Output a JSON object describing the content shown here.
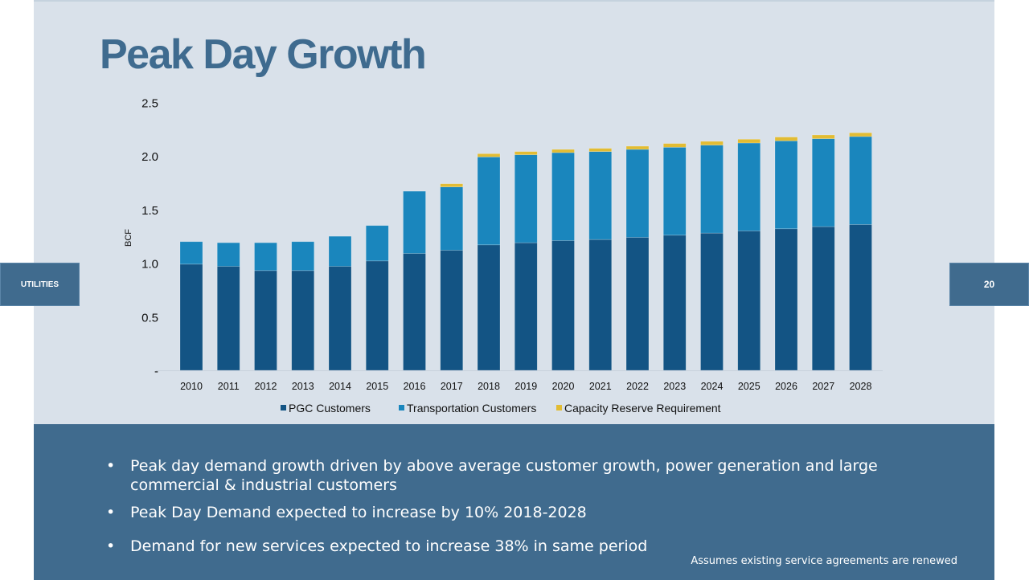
{
  "slide": {
    "title": "Peak Day Growth",
    "section_label": "UTILITIES",
    "page_number": "20",
    "bullets": [
      "Peak day demand growth driven by above average customer growth, power generation and large commercial & industrial customers",
      "Peak Day Demand expected to increase by 10% 2018-2028",
      "Demand for new services expected to increase 38% in same period"
    ],
    "footnote": "Assumes existing service agreements are renewed"
  },
  "colors": {
    "title": "#3f6b8f",
    "panel": "#406b8e",
    "background": "#d9e1ea",
    "pgc": "#135484",
    "transportation": "#1a86bd",
    "capacity": "#e2bc33"
  },
  "chart_data": {
    "type": "bar",
    "stacked": true,
    "title": "",
    "xlabel": "",
    "ylabel": "BCF",
    "ylim": [
      0,
      2.5
    ],
    "yticks": [
      0,
      0.5,
      1.0,
      1.5,
      2.0,
      2.5
    ],
    "ytick_labels": [
      "-",
      "0.5",
      "1.0",
      "1.5",
      "2.0",
      "2.5"
    ],
    "grid": false,
    "legend_position": "bottom",
    "categories": [
      "2010",
      "2011",
      "2012",
      "2013",
      "2014",
      "2015",
      "2016",
      "2017",
      "2018",
      "2019",
      "2020",
      "2021",
      "2022",
      "2023",
      "2024",
      "2025",
      "2026",
      "2027",
      "2028"
    ],
    "series": [
      {
        "name": "PGC Customers",
        "color": "#135484",
        "values": [
          0.99,
          0.97,
          0.93,
          0.93,
          0.97,
          1.02,
          1.09,
          1.12,
          1.17,
          1.19,
          1.21,
          1.22,
          1.24,
          1.26,
          1.28,
          1.3,
          1.32,
          1.34,
          1.36
        ]
      },
      {
        "name": "Transportation Customers",
        "color": "#1a86bd",
        "values": [
          0.21,
          0.22,
          0.26,
          0.27,
          0.28,
          0.33,
          0.58,
          0.59,
          0.82,
          0.82,
          0.82,
          0.82,
          0.82,
          0.82,
          0.82,
          0.82,
          0.82,
          0.82,
          0.82
        ]
      },
      {
        "name": "Capacity Reserve Requirement",
        "color": "#e2bc33",
        "values": [
          0,
          0,
          0,
          0,
          0,
          0,
          0,
          0.03,
          0.03,
          0.03,
          0.03,
          0.03,
          0.03,
          0.035,
          0.035,
          0.035,
          0.035,
          0.035,
          0.035
        ]
      }
    ]
  }
}
